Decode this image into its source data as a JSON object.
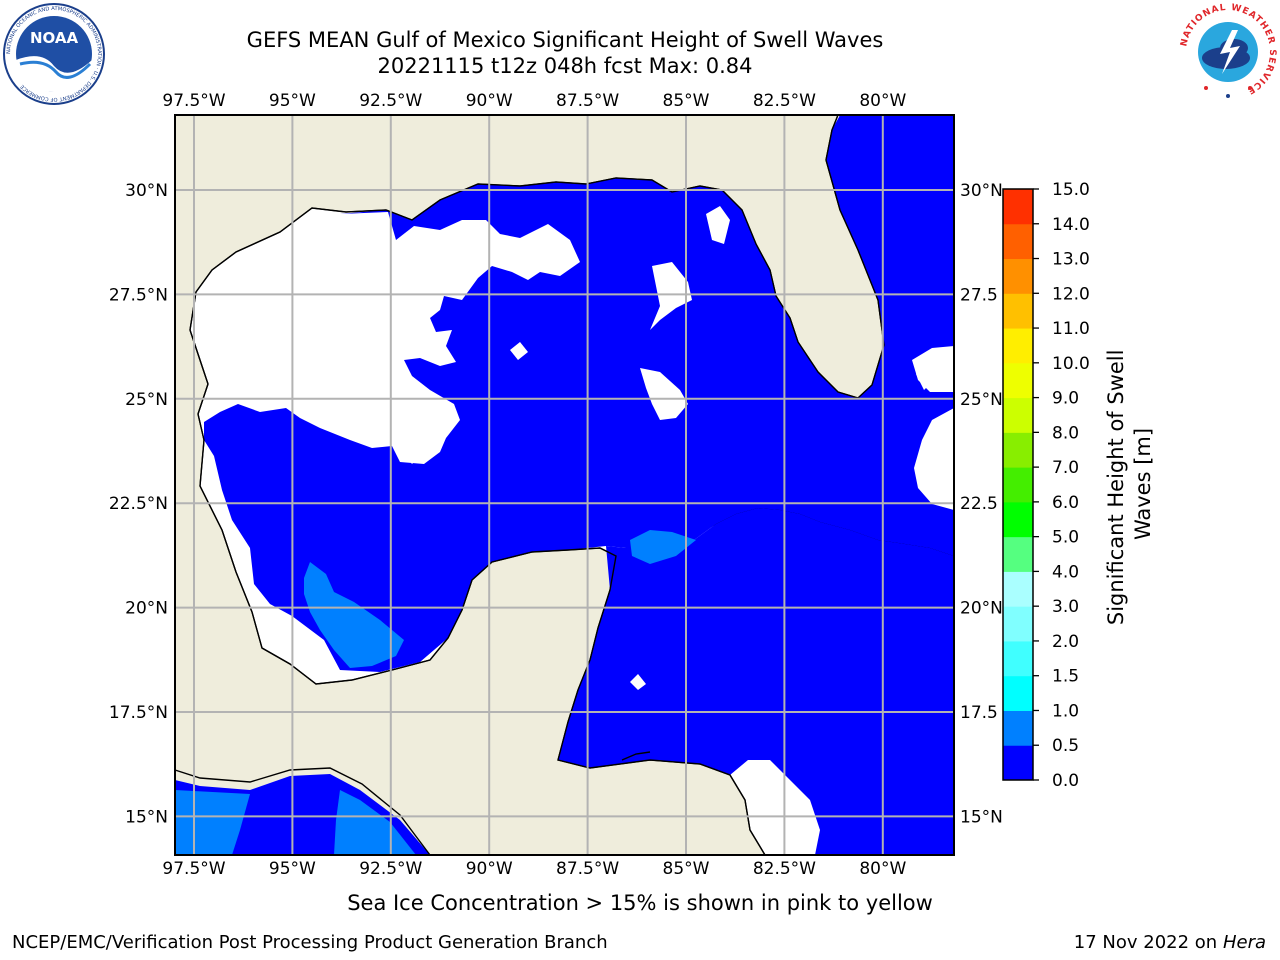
{
  "header": {
    "title_line1": "GEFS MEAN Gulf of Mexico Significant Height of Swell Waves",
    "title_line2": "20221115 t12z 048h fcst   Max: 0.84"
  },
  "map": {
    "longitude_ticks": [
      "97.5°W",
      "95°W",
      "92.5°W",
      "90°W",
      "87.5°W",
      "85°W",
      "82.5°W",
      "80°W"
    ],
    "latitude_ticks_left": [
      "30°N",
      "27.5°N",
      "25°N",
      "22.5°N",
      "20°N",
      "17.5°N",
      "15°N"
    ],
    "latitude_ticks_right": [
      "30°N",
      "27.5",
      "25°N",
      "22.5",
      "20°N",
      "17.5",
      "15°N"
    ],
    "land_color": "#efeddc",
    "grid_color": "#b3b3b3"
  },
  "colorbar": {
    "label": "Significant Height of Swell Waves [m]",
    "label_line1": "Significant Height of Swell",
    "label_line2": "Waves [m]",
    "levels": [
      "0.0",
      "0.5",
      "1.0",
      "1.5",
      "2.0",
      "3.0",
      "4.0",
      "5.0",
      "6.0",
      "7.0",
      "8.0",
      "9.0",
      "10.0",
      "11.0",
      "12.0",
      "13.0",
      "14.0",
      "15.0"
    ],
    "colors": [
      "#0000ff",
      "#0080ff",
      "#00ffff",
      "#40ffff",
      "#80ffff",
      "#aaffff",
      "#55ff80",
      "#00ff00",
      "#44ee00",
      "#88ee00",
      "#ccff00",
      "#eeff00",
      "#ffee00",
      "#ffc000",
      "#ff9000",
      "#ff6000",
      "#ff3000",
      "#ff0000"
    ]
  },
  "footer": {
    "note": "Sea Ice Concentration > 15% is shown in pink to yellow",
    "credit": "NCEP/EMC/Verification Post Processing Product Generation Branch",
    "date_prefix": "17 Nov 2022 on",
    "date_host": "Hera"
  },
  "logos": {
    "left": "NOAA",
    "left_ring": "NATIONAL OCEANIC AND ATMOSPHERIC ADMINISTRATION · U.S. DEPARTMENT OF COMMERCE",
    "right_ring": "NATIONAL WEATHER SERVICE"
  }
}
